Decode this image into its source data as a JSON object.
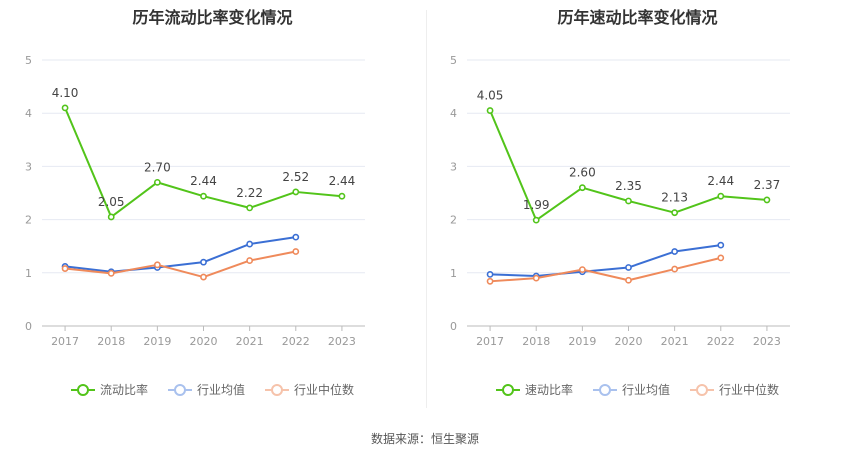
{
  "colors": {
    "main": "#52c41a",
    "average": "#3b6fd4",
    "median": "#ef8a5b",
    "grid": "#e6e9f2",
    "axis": "#999999",
    "label": "#444444"
  },
  "source_text": "数据来源：恒生聚源",
  "chart_data": [
    {
      "type": "line",
      "title": "历年流动比率变化情况",
      "categories": [
        "2017",
        "2018",
        "2019",
        "2020",
        "2021",
        "2022",
        "2023"
      ],
      "ylim": [
        0,
        5
      ],
      "yticks": [
        "0",
        "1",
        "2",
        "3",
        "4",
        "5"
      ],
      "grid": true,
      "legend_position": "bottom",
      "series": [
        {
          "name": "流动比率",
          "values": [
            4.1,
            2.05,
            2.7,
            2.44,
            2.22,
            2.52,
            2.44
          ],
          "labels": [
            "4.10",
            "2.05",
            "2.70",
            "2.44",
            "2.22",
            "2.52",
            "2.44"
          ]
        },
        {
          "name": "行业均值",
          "values": [
            1.12,
            1.02,
            1.1,
            1.2,
            1.54,
            1.67,
            null
          ]
        },
        {
          "name": "行业中位数",
          "values": [
            1.08,
            0.99,
            1.15,
            0.92,
            1.23,
            1.4,
            null
          ]
        }
      ]
    },
    {
      "type": "line",
      "title": "历年速动比率变化情况",
      "categories": [
        "2017",
        "2018",
        "2019",
        "2020",
        "2021",
        "2022",
        "2023"
      ],
      "ylim": [
        0,
        5
      ],
      "yticks": [
        "0",
        "1",
        "2",
        "3",
        "4",
        "5"
      ],
      "grid": true,
      "legend_position": "bottom",
      "series": [
        {
          "name": "速动比率",
          "values": [
            4.05,
            1.99,
            2.6,
            2.35,
            2.13,
            2.44,
            2.37
          ],
          "labels": [
            "4.05",
            "1.99",
            "2.60",
            "2.35",
            "2.13",
            "2.44",
            "2.37"
          ]
        },
        {
          "name": "行业均值",
          "values": [
            0.97,
            0.94,
            1.02,
            1.1,
            1.4,
            1.52,
            null
          ]
        },
        {
          "name": "行业中位数",
          "values": [
            0.84,
            0.9,
            1.06,
            0.86,
            1.07,
            1.28,
            null
          ]
        }
      ]
    }
  ]
}
